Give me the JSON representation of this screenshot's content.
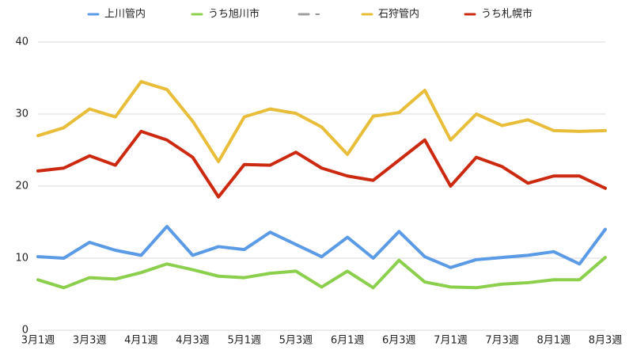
{
  "chart_data": {
    "type": "line",
    "categories": [
      "3月1週",
      null,
      "3月3週",
      null,
      "4月1週",
      null,
      "4月3週",
      null,
      "5月1週",
      null,
      "5月3週",
      null,
      "6月1週",
      null,
      "6月3週",
      null,
      "7月1週",
      null,
      "7月3週",
      null,
      "8月1週",
      null,
      "8月3週"
    ],
    "series": [
      {
        "name": "上川管内",
        "color": "#5b9be6",
        "values": [
          10.2,
          10.0,
          12.2,
          11.1,
          10.4,
          14.4,
          10.4,
          11.6,
          11.2,
          13.6,
          11.9,
          10.2,
          12.9,
          10.0,
          13.7,
          10.2,
          8.7,
          9.8,
          10.1,
          10.4,
          10.9,
          9.2,
          14.0
        ]
      },
      {
        "name": "うち旭川市",
        "color": "#8ccf4d",
        "values": [
          7.0,
          5.9,
          7.3,
          7.1,
          8.0,
          9.2,
          8.4,
          7.5,
          7.3,
          7.9,
          8.2,
          6.0,
          8.2,
          5.9,
          9.7,
          6.7,
          6.0,
          5.9,
          6.4,
          6.6,
          7.0,
          7.0,
          10.1
        ]
      },
      {
        "name": "–",
        "color": "#9e9e9e",
        "values": [
          null,
          null,
          null,
          null,
          null,
          null,
          null,
          null,
          null,
          null,
          null,
          null,
          null,
          null,
          null,
          null,
          null,
          null,
          null,
          null,
          null,
          null,
          null
        ]
      },
      {
        "name": "石狩管内",
        "color": "#e8bd3a",
        "values": [
          27.0,
          28.1,
          30.7,
          29.6,
          34.5,
          33.4,
          29.0,
          23.4,
          29.6,
          30.7,
          30.1,
          28.2,
          24.4,
          29.7,
          30.2,
          33.3,
          26.4,
          30.0,
          28.4,
          29.2,
          27.7,
          27.6,
          27.7
        ]
      },
      {
        "name": "うち札幌市",
        "color": "#cc2a10",
        "values": [
          22.1,
          22.5,
          24.2,
          22.9,
          27.6,
          26.4,
          24.0,
          18.5,
          23.0,
          22.9,
          24.7,
          22.5,
          21.4,
          20.8,
          23.6,
          26.4,
          20.0,
          24.0,
          22.7,
          20.4,
          21.4,
          21.4,
          19.7
        ]
      }
    ],
    "ylim": [
      0,
      40
    ],
    "yticks": [
      0,
      10,
      20,
      30,
      40
    ],
    "grid": true,
    "legend": "top"
  }
}
